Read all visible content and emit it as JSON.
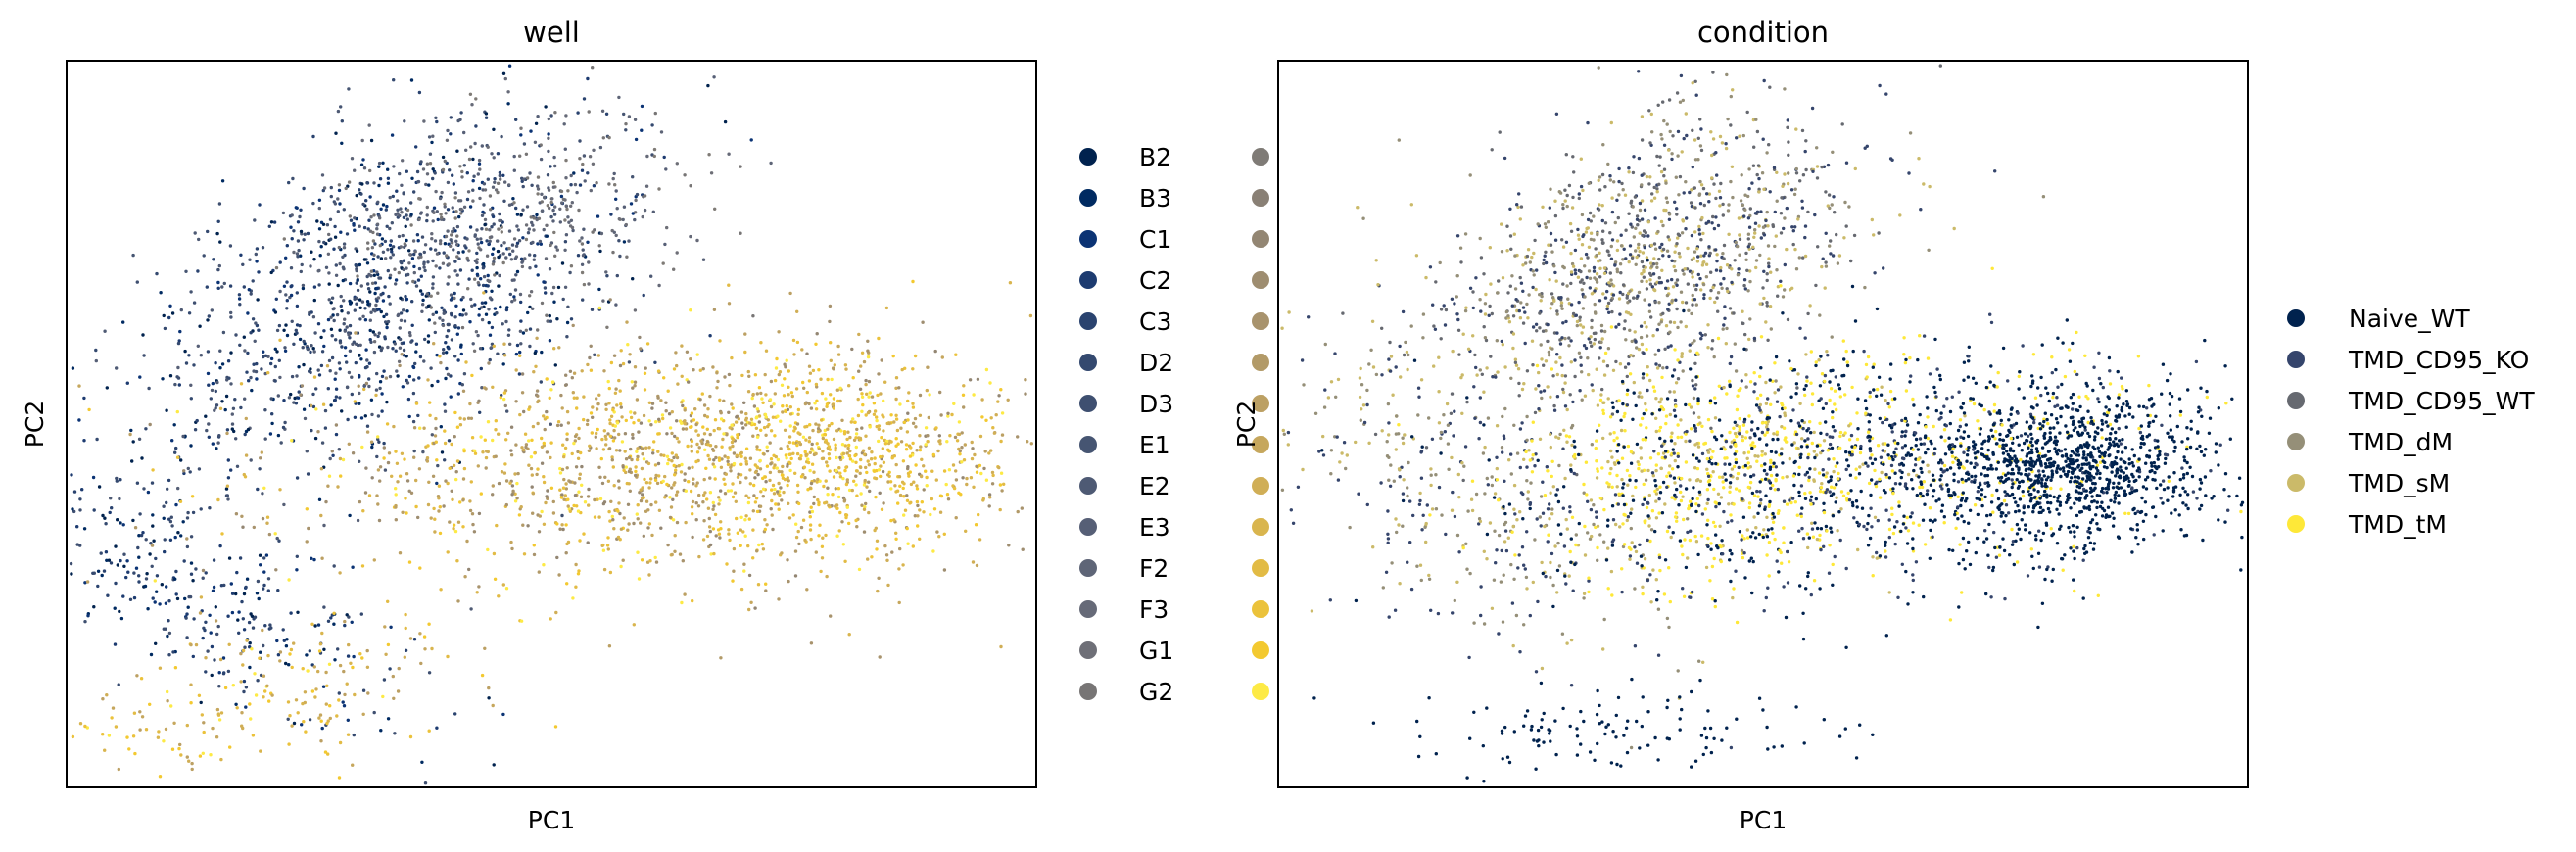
{
  "palette_note": "cividis-like",
  "chart_data": [
    {
      "type": "scatter",
      "title": "well",
      "xlabel": "PC1",
      "ylabel": "PC2",
      "grid": false,
      "ticks": false,
      "legend_position": "right, two columns",
      "legend_columns": [
        [
          "B2",
          "B3",
          "C1",
          "C2",
          "C3",
          "D2",
          "D3",
          "E1",
          "E2",
          "E3",
          "F2",
          "F3",
          "G1",
          "G2"
        ],
        [
          "",
          "",
          "",
          "",
          "",
          "",
          "",
          "",
          "",
          "",
          "",
          "",
          "",
          ""
        ]
      ],
      "legend_colors": [
        [
          "#00224e",
          "#002a61",
          "#0b3374",
          "#1d3b70",
          "#2a436f",
          "#34496f",
          "#3e4f70",
          "#465572",
          "#4e5a74",
          "#565f76",
          "#5e6577",
          "#666a78",
          "#6e6f77",
          "#777575"
        ],
        [
          "#7f7b76",
          "#898075",
          "#938673",
          "#9e8d70",
          "#a8936d",
          "#b29a68",
          "#bca063",
          "#c6a75d",
          "#d0ae56",
          "#d9b54e",
          "#e2bb45",
          "#ebc23b",
          "#f3c930",
          "#fdea45"
        ]
      ],
      "note": "Points colored by well; dark blue wells form an upper-left arm, yellow wells spread to the right"
    },
    {
      "type": "scatter",
      "title": "condition",
      "xlabel": "PC1",
      "ylabel": "PC2",
      "grid": false,
      "ticks": false,
      "legend_position": "right",
      "legend": [
        {
          "label": "Naive_WT",
          "color": "#00224e"
        },
        {
          "label": "TMD_CD95_KO",
          "color": "#35456c"
        },
        {
          "label": "TMD_CD95_WT",
          "color": "#666970"
        },
        {
          "label": "TMD_dM",
          "color": "#958f78"
        },
        {
          "label": "TMD_sM",
          "color": "#cbba69"
        },
        {
          "label": "TMD_tM",
          "color": "#fee838"
        }
      ],
      "note": "Naive_WT dense cluster on the right; TMD conditions occupy the upper-left arm"
    }
  ]
}
